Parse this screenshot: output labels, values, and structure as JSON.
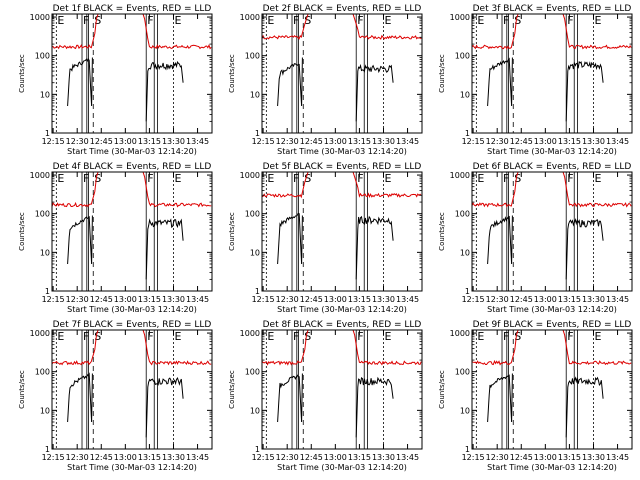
{
  "chart_data": [
    {
      "type": "line",
      "title": "Det 1f BLACK = Events, RED = LLD"
    },
    {
      "type": "line",
      "title": "Det 2f BLACK = Events, RED = LLD"
    },
    {
      "type": "line",
      "title": "Det 3f BLACK = Events, RED = LLD"
    },
    {
      "type": "line",
      "title": "Det 4f BLACK = Events, RED = LLD"
    },
    {
      "type": "line",
      "title": "Det 5f BLACK = Events, RED = LLD"
    },
    {
      "type": "line",
      "title": "Det 6f BLACK = Events, RED = LLD"
    },
    {
      "type": "line",
      "title": "Det 7f BLACK = Events, RED = LLD"
    },
    {
      "type": "line",
      "title": "Det 8f BLACK = Events, RED = LLD"
    },
    {
      "type": "line",
      "title": "Det 9f BLACK = Events, RED = LLD"
    }
  ],
  "shared": {
    "xlabel": "Start Time (30-Mar-03 12:14:20)",
    "ylabel": "Counts/sec",
    "xticks": [
      "12:15",
      "12:30",
      "12:45",
      "13:00",
      "13:15",
      "13:30",
      "13:45"
    ],
    "xtick_minutes": [
      15,
      30,
      45,
      60,
      75,
      90,
      105
    ],
    "xlim_minutes": [
      14.3,
      114
    ],
    "yticks": [
      "1",
      "10",
      "100",
      "1000"
    ],
    "ytick_values": [
      1,
      10,
      100,
      1000
    ],
    "ylim": [
      1,
      1200
    ],
    "log_y": true,
    "markers": [
      "E",
      "F",
      "S",
      "F",
      "E"
    ],
    "marker_minutes": [
      17,
      33,
      40,
      73,
      90
    ],
    "series_colors": {
      "events": "#000000",
      "lld": "#dd0000"
    }
  }
}
